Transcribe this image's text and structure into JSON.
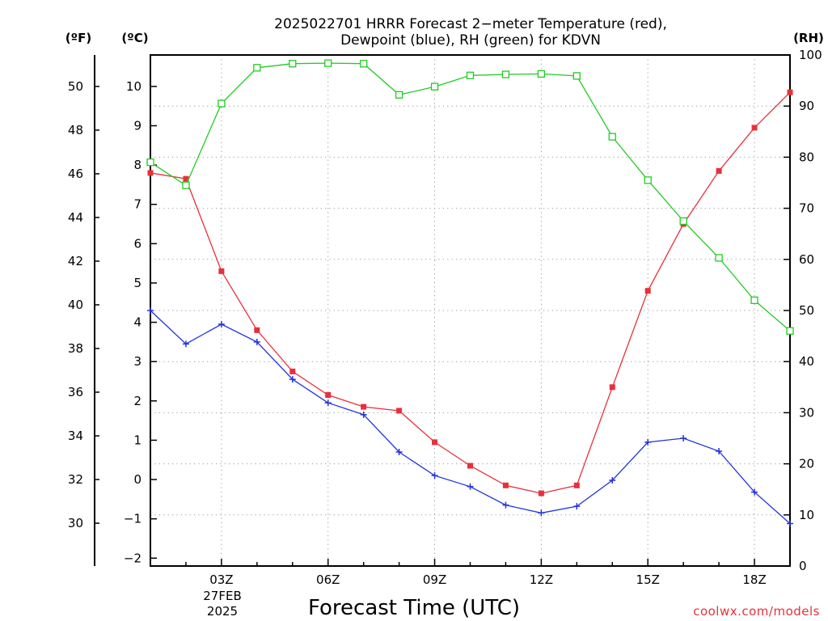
{
  "chart_data": {
    "type": "line",
    "title": "2025022701 HRRR Forecast 2−meter Temperature (red),",
    "subtitle": "Dewpoint (blue), RH (green) for KDVN",
    "xlabel": "Forecast Time (UTC)",
    "unit_left_f": "(ºF)",
    "unit_left_c": "(ºC)",
    "unit_right": "(RH)",
    "credit": "coolwx.com/models",
    "x_date_line1": "27FEB",
    "x_date_line2": "2025",
    "x": [
      1,
      2,
      3,
      4,
      5,
      6,
      7,
      8,
      9,
      10,
      11,
      12,
      13,
      14,
      15,
      16,
      17,
      18,
      19
    ],
    "xlim": [
      1,
      19
    ],
    "x_ticks": [
      3,
      6,
      9,
      12,
      15,
      18
    ],
    "x_tick_labels": [
      "03Z",
      "06Z",
      "09Z",
      "12Z",
      "15Z",
      "18Z"
    ],
    "ylim_c": [
      -2.2,
      10.8
    ],
    "y_ticks_c": [
      -2,
      -1,
      0,
      1,
      2,
      3,
      4,
      5,
      6,
      7,
      8,
      9,
      10
    ],
    "y_ticks_f": [
      30,
      32,
      34,
      36,
      38,
      40,
      42,
      44,
      46,
      48,
      50
    ],
    "ylim_rh": [
      0,
      100
    ],
    "y_ticks_rh": [
      0,
      10,
      20,
      30,
      40,
      50,
      60,
      70,
      80,
      90,
      100
    ],
    "grid": true,
    "series": [
      {
        "name": "Temperature",
        "axis": "c",
        "color": "#e8303a",
        "marker": "filled-square",
        "values": [
          7.8,
          7.65,
          5.3,
          3.8,
          2.75,
          2.15,
          1.85,
          1.75,
          0.95,
          0.35,
          -0.15,
          -0.35,
          -0.15,
          2.35,
          4.8,
          6.5,
          7.85,
          8.95,
          9.85
        ]
      },
      {
        "name": "Dewpoint",
        "axis": "c",
        "color": "#2233dd",
        "marker": "plus",
        "values": [
          4.3,
          3.45,
          3.95,
          3.5,
          2.55,
          1.95,
          1.65,
          0.7,
          0.1,
          -0.18,
          -0.65,
          -0.85,
          -0.68,
          -0.02,
          0.95,
          1.05,
          0.72,
          -0.32,
          -1.12
        ]
      },
      {
        "name": "RH",
        "axis": "rh",
        "color": "#22cc22",
        "marker": "open-square",
        "values": [
          79,
          74.5,
          90.5,
          97.5,
          98.3,
          98.4,
          98.3,
          92.2,
          93.8,
          96,
          96.2,
          96.3,
          95.9,
          84,
          75.5,
          67.5,
          60.3,
          52,
          46
        ]
      }
    ]
  }
}
